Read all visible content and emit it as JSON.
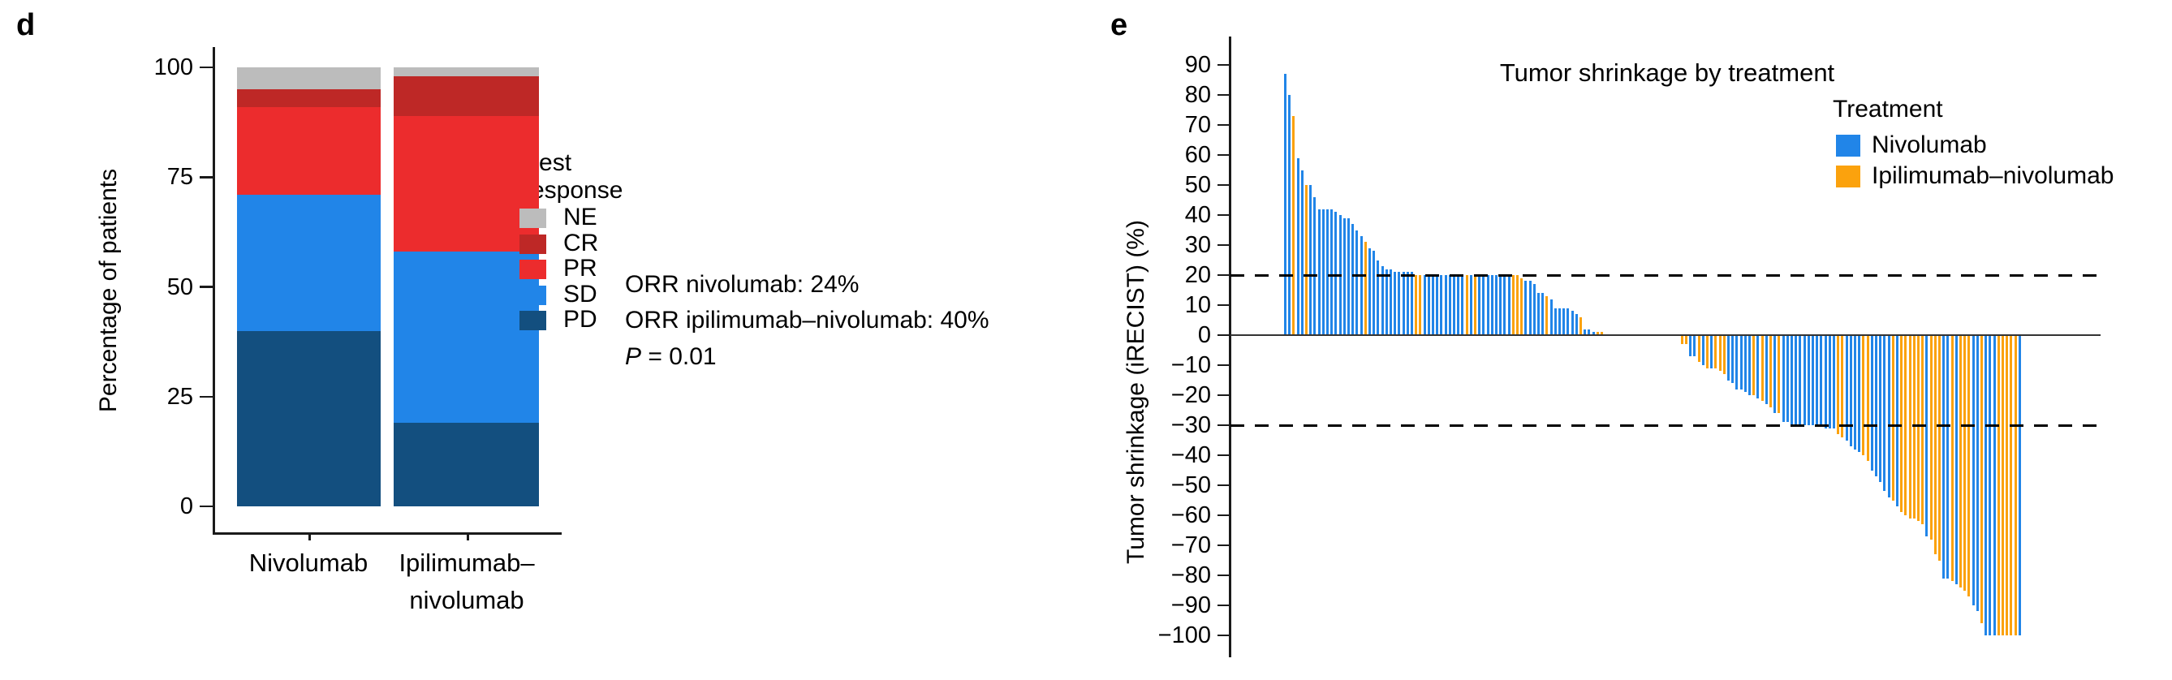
{
  "panels": {
    "d": {
      "label": "d",
      "y_axis_title": "Percentage of patients",
      "legend_title_line1": "Best",
      "legend_title_line2": "response",
      "orr_line1": "ORR nivolumab: 24%",
      "orr_line2": "ORR ipilimumab–nivolumab: 40%",
      "p_italic": "P",
      "p_rest": " = 0.01"
    },
    "e": {
      "label": "e",
      "title": "Tumor shrinkage by treatment",
      "y_axis_title": "Tumor shrinkage (iRECIST) (%)",
      "legend_title": "Treatment"
    }
  },
  "chart_data": [
    {
      "id": "d",
      "type": "bar",
      "stacked": true,
      "ylabel": "Percentage of patients",
      "ylim": [
        0,
        100
      ],
      "yticks": [
        0,
        25,
        50,
        75,
        100
      ],
      "categories": [
        "Nivolumab",
        "Ipilimumab–nivolumab"
      ],
      "category_label_lines": [
        [
          "Nivolumab"
        ],
        [
          "Ipilimumab–",
          "nivolumab"
        ]
      ],
      "legend_title": "Best response",
      "legend_order_top_to_bottom": [
        "NE",
        "CR",
        "PR",
        "SD",
        "PD"
      ],
      "series": [
        {
          "name": "PD",
          "color": "#134F7F",
          "values": [
            40,
            19
          ]
        },
        {
          "name": "SD",
          "color": "#2185E8",
          "values": [
            31,
            39
          ]
        },
        {
          "name": "PR",
          "color": "#EC2C2D",
          "values": [
            20,
            31
          ]
        },
        {
          "name": "CR",
          "color": "#BE2826",
          "values": [
            4,
            9
          ]
        },
        {
          "name": "NE",
          "color": "#BCBCBC",
          "values": [
            5,
            2
          ]
        }
      ],
      "annotations": [
        "ORR nivolumab: 24%",
        "ORR ipilimumab–nivolumab: 40%",
        "P = 0.01"
      ]
    },
    {
      "id": "e",
      "type": "bar",
      "subtype": "waterfall",
      "title": "Tumor shrinkage by treatment",
      "ylabel": "Tumor shrinkage (iRECIST) (%)",
      "ylim": [
        -100,
        90
      ],
      "yticks": [
        90,
        80,
        70,
        60,
        50,
        40,
        30,
        20,
        10,
        0,
        -10,
        -20,
        -30,
        -40,
        -50,
        -60,
        -70,
        -80,
        -90,
        -100
      ],
      "grid": false,
      "baseline": 0,
      "reference_lines_dashed": [
        20,
        -30
      ],
      "legend_title": "Treatment",
      "legend_keys_order": [
        "n",
        "i"
      ],
      "treatments": {
        "n": {
          "name": "Nivolumab",
          "color": "#2185E8"
        },
        "i": {
          "name": "Ipilimumab–nivolumab",
          "color": "#FBA20D"
        }
      },
      "bars": [
        [
          87,
          "n"
        ],
        [
          80,
          "n"
        ],
        [
          73,
          "i"
        ],
        [
          59,
          "n"
        ],
        [
          55,
          "n"
        ],
        [
          50,
          "i"
        ],
        [
          50,
          "n"
        ],
        [
          46,
          "n"
        ],
        [
          42,
          "n"
        ],
        [
          42,
          "n"
        ],
        [
          42,
          "n"
        ],
        [
          42,
          "n"
        ],
        [
          41,
          "n"
        ],
        [
          40,
          "n"
        ],
        [
          39,
          "n"
        ],
        [
          39,
          "n"
        ],
        [
          37,
          "n"
        ],
        [
          35,
          "n"
        ],
        [
          33,
          "n"
        ],
        [
          31,
          "i"
        ],
        [
          29,
          "n"
        ],
        [
          28,
          "n"
        ],
        [
          25,
          "n"
        ],
        [
          23,
          "n"
        ],
        [
          22,
          "n"
        ],
        [
          22,
          "n"
        ],
        [
          21,
          "n"
        ],
        [
          21,
          "n"
        ],
        [
          21,
          "n"
        ],
        [
          21,
          "n"
        ],
        [
          21,
          "n"
        ],
        [
          20,
          "i"
        ],
        [
          20,
          "i"
        ],
        [
          20,
          "n"
        ],
        [
          20,
          "n"
        ],
        [
          20,
          "n"
        ],
        [
          20,
          "n"
        ],
        [
          20,
          "n"
        ],
        [
          20,
          "n"
        ],
        [
          20,
          "n"
        ],
        [
          20,
          "n"
        ],
        [
          20,
          "n"
        ],
        [
          20,
          "n"
        ],
        [
          20,
          "i"
        ],
        [
          20,
          "n"
        ],
        [
          20,
          "i"
        ],
        [
          20,
          "n"
        ],
        [
          20,
          "n"
        ],
        [
          20,
          "n"
        ],
        [
          20,
          "n"
        ],
        [
          20,
          "n"
        ],
        [
          20,
          "n"
        ],
        [
          20,
          "n"
        ],
        [
          20,
          "n"
        ],
        [
          20,
          "i"
        ],
        [
          20,
          "i"
        ],
        [
          19,
          "i"
        ],
        [
          18,
          "n"
        ],
        [
          18,
          "n"
        ],
        [
          17,
          "n"
        ],
        [
          14,
          "n"
        ],
        [
          14,
          "n"
        ],
        [
          13,
          "i"
        ],
        [
          12,
          "n"
        ],
        [
          9,
          "n"
        ],
        [
          9,
          "n"
        ],
        [
          9,
          "n"
        ],
        [
          9,
          "n"
        ],
        [
          8,
          "n"
        ],
        [
          7,
          "n"
        ],
        [
          6,
          "i"
        ],
        [
          2,
          "n"
        ],
        [
          2,
          "n"
        ],
        [
          1,
          "n"
        ],
        [
          1,
          "i"
        ],
        [
          1,
          "i"
        ],
        [
          0,
          "n"
        ],
        [
          0,
          "i"
        ],
        [
          0,
          "n"
        ],
        [
          0,
          "i"
        ],
        [
          0,
          "n"
        ],
        [
          0,
          "i"
        ],
        [
          0,
          "n"
        ],
        [
          0,
          "i"
        ],
        [
          0,
          "n"
        ],
        [
          0,
          "i"
        ],
        [
          0,
          "n"
        ],
        [
          0,
          "i"
        ],
        [
          0,
          "n"
        ],
        [
          0,
          "i"
        ],
        [
          0,
          "n"
        ],
        [
          0,
          "i"
        ],
        [
          0,
          "n"
        ],
        [
          0,
          "i"
        ],
        [
          -3,
          "i"
        ],
        [
          -3,
          "i"
        ],
        [
          -7,
          "n"
        ],
        [
          -7,
          "n"
        ],
        [
          -9,
          "i"
        ],
        [
          -10,
          "n"
        ],
        [
          -11,
          "i"
        ],
        [
          -11,
          "n"
        ],
        [
          -11,
          "i"
        ],
        [
          -12,
          "i"
        ],
        [
          -13,
          "i"
        ],
        [
          -15,
          "n"
        ],
        [
          -16,
          "n"
        ],
        [
          -18,
          "n"
        ],
        [
          -18,
          "n"
        ],
        [
          -19,
          "n"
        ],
        [
          -20,
          "n"
        ],
        [
          -20,
          "i"
        ],
        [
          -21,
          "n"
        ],
        [
          -22,
          "i"
        ],
        [
          -23,
          "n"
        ],
        [
          -24,
          "i"
        ],
        [
          -26,
          "n"
        ],
        [
          -26,
          "i"
        ],
        [
          -29,
          "n"
        ],
        [
          -29,
          "n"
        ],
        [
          -30,
          "n"
        ],
        [
          -30,
          "n"
        ],
        [
          -30,
          "n"
        ],
        [
          -30,
          "n"
        ],
        [
          -30,
          "n"
        ],
        [
          -30,
          "n"
        ],
        [
          -30,
          "n"
        ],
        [
          -30,
          "n"
        ],
        [
          -31,
          "n"
        ],
        [
          -31,
          "n"
        ],
        [
          -31,
          "n"
        ],
        [
          -33,
          "i"
        ],
        [
          -34,
          "i"
        ],
        [
          -35,
          "n"
        ],
        [
          -37,
          "n"
        ],
        [
          -38,
          "n"
        ],
        [
          -39,
          "n"
        ],
        [
          -40,
          "i"
        ],
        [
          -42,
          "i"
        ],
        [
          -45,
          "n"
        ],
        [
          -47,
          "n"
        ],
        [
          -49,
          "n"
        ],
        [
          -52,
          "n"
        ],
        [
          -54,
          "n"
        ],
        [
          -55,
          "i"
        ],
        [
          -57,
          "n"
        ],
        [
          -59,
          "i"
        ],
        [
          -60,
          "i"
        ],
        [
          -61,
          "i"
        ],
        [
          -61,
          "i"
        ],
        [
          -62,
          "i"
        ],
        [
          -63,
          "i"
        ],
        [
          -67,
          "n"
        ],
        [
          -68,
          "i"
        ],
        [
          -73,
          "i"
        ],
        [
          -75,
          "i"
        ],
        [
          -81,
          "n"
        ],
        [
          -81,
          "n"
        ],
        [
          -82,
          "i"
        ],
        [
          -83,
          "n"
        ],
        [
          -84,
          "i"
        ],
        [
          -85,
          "i"
        ],
        [
          -87,
          "i"
        ],
        [
          -90,
          "n"
        ],
        [
          -92,
          "n"
        ],
        [
          -96,
          "i"
        ],
        [
          -100,
          "n"
        ],
        [
          -100,
          "n"
        ],
        [
          -100,
          "n"
        ],
        [
          -100,
          "i"
        ],
        [
          -100,
          "i"
        ],
        [
          -100,
          "i"
        ],
        [
          -100,
          "i"
        ],
        [
          -100,
          "i"
        ],
        [
          -100,
          "n"
        ]
      ]
    }
  ]
}
